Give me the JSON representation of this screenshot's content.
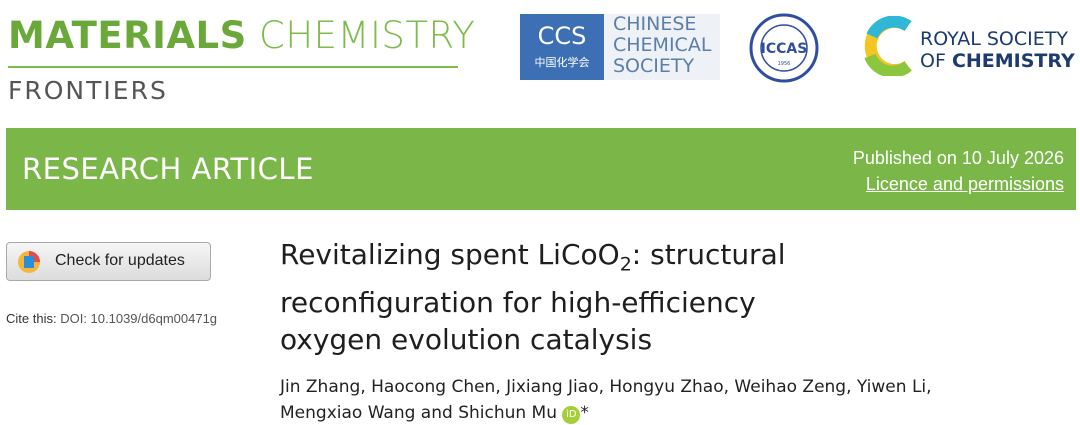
{
  "header": {
    "journal_bold": "MATERIALS",
    "journal_light": "CHEMISTRY",
    "journal_sub": "FRONTIERS",
    "ccs": {
      "abbr": "CCS",
      "chinese": "中国化学会",
      "lines": [
        "CHINESE",
        "CHEMICAL",
        "SOCIETY"
      ]
    },
    "iccas": {
      "abbr": "ICCAS",
      "year": "1956"
    },
    "rsc": {
      "line1": "ROYAL SOCIETY",
      "line2_light": "OF",
      "line2_bold": "CHEMISTRY"
    }
  },
  "banner": {
    "type": "RESEARCH ARTICLE",
    "published": "Published on 10 July 2026",
    "licence": "Licence and permissions"
  },
  "sidebar": {
    "check": "Check for updates",
    "cite_label": "Cite this:",
    "doi": "DOI: 10.1039/d6qm00471g"
  },
  "article": {
    "title_line1_start": "Revitalizing spent LiCoO",
    "title_subscript": "2",
    "title_line1_end": ": structural",
    "title_line2": "reconfiguration for high-efficiency",
    "title_line3": "oxygen evolution catalysis",
    "authors_line1": "Jin Zhang, Haocong Chen, Jixiang Jiao, Hongyu Zhao, Weihao Zeng, Yiwen Li,",
    "authors_line2": "Mengxiao Wang and Shichun Mu",
    "orcid": "iD",
    "corresponding": "*"
  }
}
